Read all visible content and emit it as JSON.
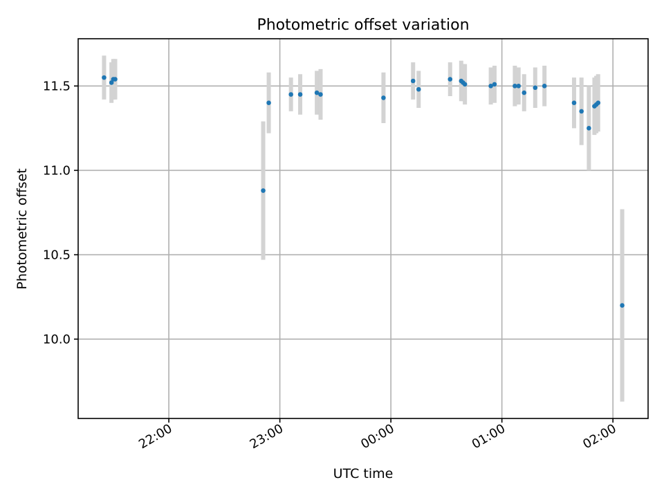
{
  "chart_data": {
    "type": "scatter",
    "title": "Photometric offset variation",
    "xlabel": "UTC time",
    "ylabel": "Photometric offset",
    "x_reference_date": "2000-01-01",
    "x_tick_labels": [
      "22:00",
      "23:00",
      "00:00",
      "01:00",
      "02:00"
    ],
    "x_ticks": [
      "2000-01-01T22:00",
      "2000-01-01T23:00",
      "2000-01-02T00:00",
      "2000-01-02T01:00",
      "2000-01-02T02:00"
    ],
    "xlim": [
      "2000-01-01T21:11",
      "2000-01-02T02:19"
    ],
    "y_tick_labels": [
      "10.0",
      "10.5",
      "11.0",
      "11.5"
    ],
    "y_ticks": [
      10.0,
      10.5,
      11.0,
      11.5
    ],
    "ylim": [
      9.53,
      11.78
    ],
    "grid": true,
    "point_color": "#1f77b4",
    "errorbar_color": "#d3d3d3",
    "points": [
      {
        "x": "2000-01-01T21:25",
        "y": 11.55,
        "yerr": 0.13
      },
      {
        "x": "2000-01-01T21:29",
        "y": 11.52,
        "yerr": 0.12
      },
      {
        "x": "2000-01-01T21:30",
        "y": 11.54,
        "yerr": 0.12
      },
      {
        "x": "2000-01-01T21:31",
        "y": 11.54,
        "yerr": 0.12
      },
      {
        "x": "2000-01-01T22:51",
        "y": 10.88,
        "yerr": 0.41
      },
      {
        "x": "2000-01-01T22:54",
        "y": 11.4,
        "yerr": 0.18
      },
      {
        "x": "2000-01-01T23:06",
        "y": 11.45,
        "yerr": 0.1
      },
      {
        "x": "2000-01-01T23:11",
        "y": 11.45,
        "yerr": 0.12
      },
      {
        "x": "2000-01-01T23:20",
        "y": 11.46,
        "yerr": 0.13
      },
      {
        "x": "2000-01-01T23:22",
        "y": 11.45,
        "yerr": 0.15
      },
      {
        "x": "2000-01-01T23:56",
        "y": 11.43,
        "yerr": 0.15
      },
      {
        "x": "2000-01-02T00:12",
        "y": 11.53,
        "yerr": 0.11
      },
      {
        "x": "2000-01-02T00:15",
        "y": 11.48,
        "yerr": 0.11
      },
      {
        "x": "2000-01-02T00:32",
        "y": 11.54,
        "yerr": 0.1
      },
      {
        "x": "2000-01-02T00:38",
        "y": 11.53,
        "yerr": 0.12
      },
      {
        "x": "2000-01-02T00:39",
        "y": 11.52,
        "yerr": 0.11
      },
      {
        "x": "2000-01-02T00:40",
        "y": 11.51,
        "yerr": 0.12
      },
      {
        "x": "2000-01-02T00:54",
        "y": 11.5,
        "yerr": 0.11
      },
      {
        "x": "2000-01-02T00:56",
        "y": 11.51,
        "yerr": 0.11
      },
      {
        "x": "2000-01-02T01:07",
        "y": 11.5,
        "yerr": 0.12
      },
      {
        "x": "2000-01-02T01:09",
        "y": 11.5,
        "yerr": 0.11
      },
      {
        "x": "2000-01-02T01:12",
        "y": 11.46,
        "yerr": 0.11
      },
      {
        "x": "2000-01-02T01:18",
        "y": 11.49,
        "yerr": 0.12
      },
      {
        "x": "2000-01-02T01:23",
        "y": 11.5,
        "yerr": 0.12
      },
      {
        "x": "2000-01-02T01:39",
        "y": 11.4,
        "yerr": 0.15
      },
      {
        "x": "2000-01-02T01:43",
        "y": 11.35,
        "yerr": 0.2
      },
      {
        "x": "2000-01-02T01:47",
        "y": 11.25,
        "yerr": 0.25
      },
      {
        "x": "2000-01-02T01:50",
        "y": 11.38,
        "yerr": 0.17
      },
      {
        "x": "2000-01-02T01:51",
        "y": 11.39,
        "yerr": 0.17
      },
      {
        "x": "2000-01-02T01:52",
        "y": 11.4,
        "yerr": 0.17
      },
      {
        "x": "2000-01-02T02:05",
        "y": 10.2,
        "yerr": 0.57
      }
    ]
  }
}
